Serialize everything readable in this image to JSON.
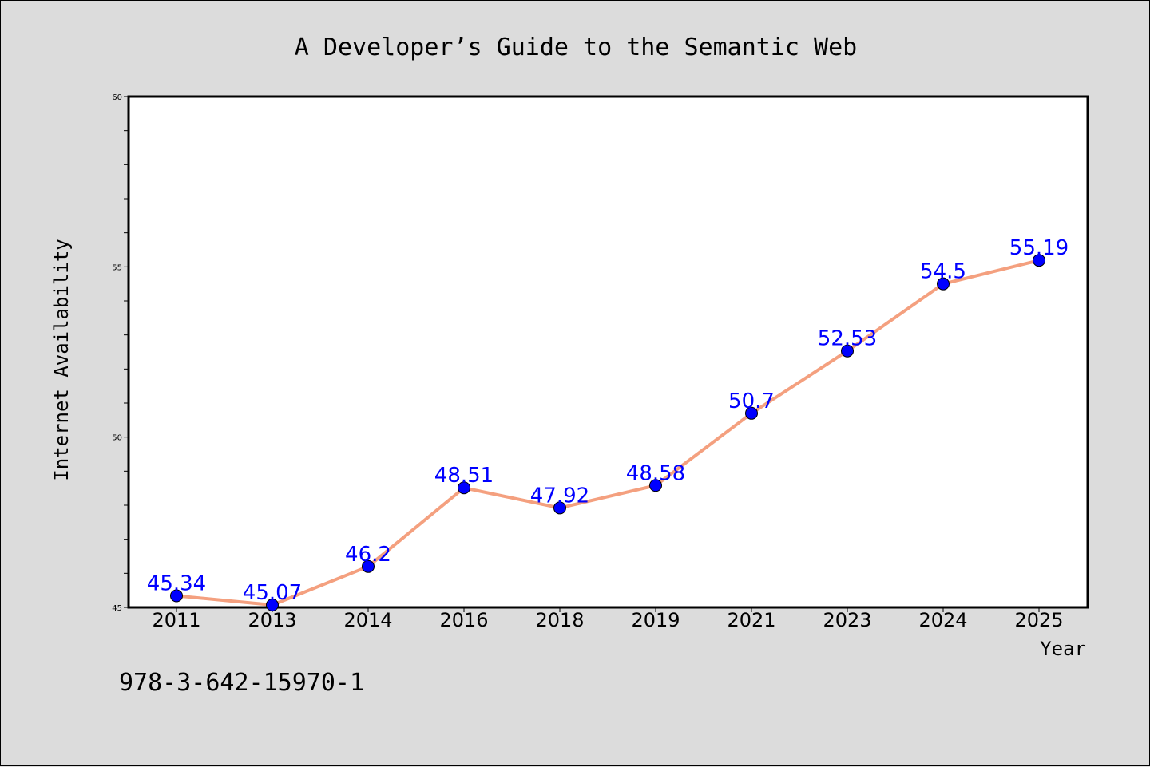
{
  "chart_data": {
    "type": "line",
    "title": "A Developer’s Guide to the Semantic Web",
    "xlabel": "Year",
    "ylabel": "Internet Availability",
    "categories": [
      "2011",
      "2013",
      "2014",
      "2016",
      "2018",
      "2019",
      "2021",
      "2023",
      "2024",
      "2025"
    ],
    "series": [
      {
        "values": [
          45.34,
          45.07,
          46.2,
          48.51,
          47.92,
          48.58,
          50.7,
          52.53,
          54.5,
          55.19
        ]
      }
    ],
    "data_labels": [
      "45.34",
      "45.07",
      "46.2",
      "48.51",
      "47.92",
      "48.58",
      "50.7",
      "52.53",
      "54.5",
      "55.19"
    ],
    "ylim": [
      45,
      60
    ],
    "yticks": [
      45,
      50,
      55,
      60
    ],
    "grid": false,
    "legend": "none",
    "colors": {
      "line": "#f4a07f",
      "marker": "#0000ff",
      "data_label": "#0000ff",
      "background": "#dcdcdc",
      "plot_area": "#ffffff"
    }
  },
  "footer_note": "978-3-642-15970-1"
}
